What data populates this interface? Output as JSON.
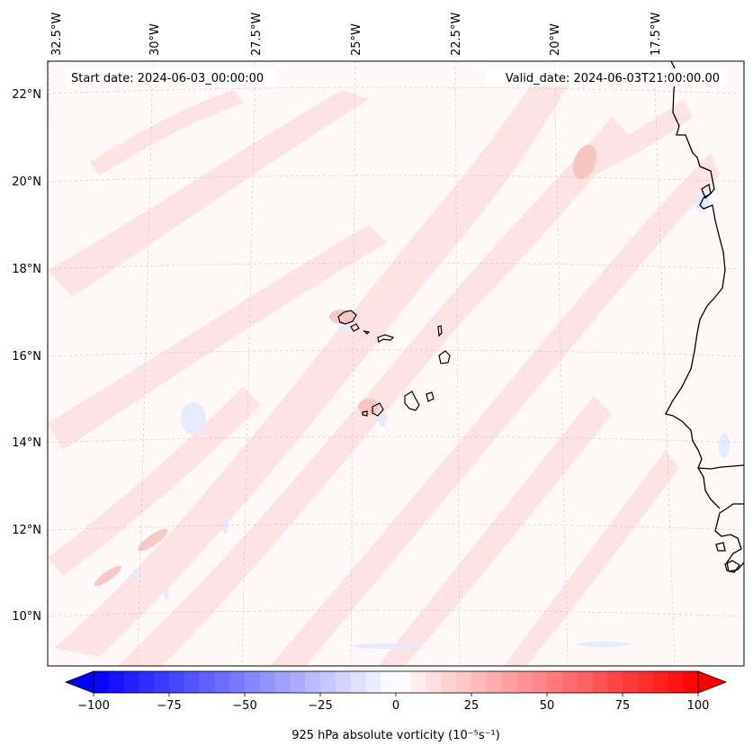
{
  "header": {
    "start_date": "Start date: 2024-06-03_00:00:00",
    "valid_date": "Valid_date: 2024-06-03T21:00:00.00"
  },
  "map": {
    "lon_ticks": [
      "32.5°W",
      "30°W",
      "27.5°W",
      "25°W",
      "22.5°W",
      "20°W",
      "17.5°W"
    ],
    "lat_ticks": [
      "22°N",
      "20°N",
      "18°N",
      "16°N",
      "14°N",
      "12°N",
      "10°N"
    ],
    "gridlines": true,
    "field_colors": {
      "weak_pos": "#fde2e2",
      "mod_pos": "#f9bcbc",
      "weak_neg": "#e8ecff"
    }
  },
  "colorbar": {
    "label": "925 hPa absolute vorticity (10⁻⁵s⁻¹)",
    "ticks": [
      "−100",
      "−75",
      "−50",
      "−25",
      "0",
      "25",
      "50",
      "75",
      "100"
    ],
    "min": -100,
    "max": 100,
    "colormap": "bwr",
    "extend": "both"
  }
}
